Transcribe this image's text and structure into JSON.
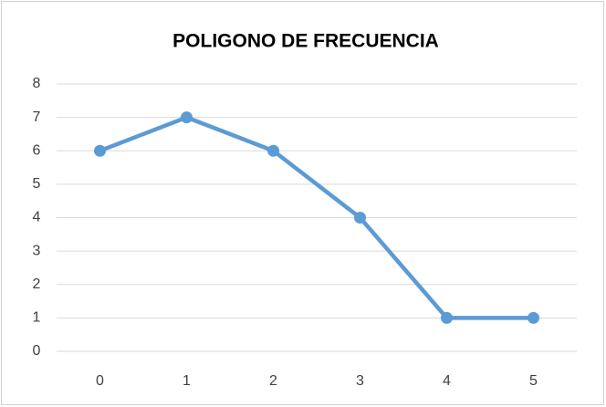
{
  "chart_data": {
    "type": "line",
    "title": "POLIGONO DE FRECUENCIA",
    "categories": [
      "0",
      "1",
      "2",
      "3",
      "4",
      "5"
    ],
    "values": [
      6,
      7,
      6,
      4,
      1,
      1
    ],
    "color": "#5b9bd5",
    "ylim": [
      0,
      8
    ],
    "yticks": [
      0,
      1,
      2,
      3,
      4,
      5,
      6,
      7,
      8
    ],
    "grid": true
  }
}
